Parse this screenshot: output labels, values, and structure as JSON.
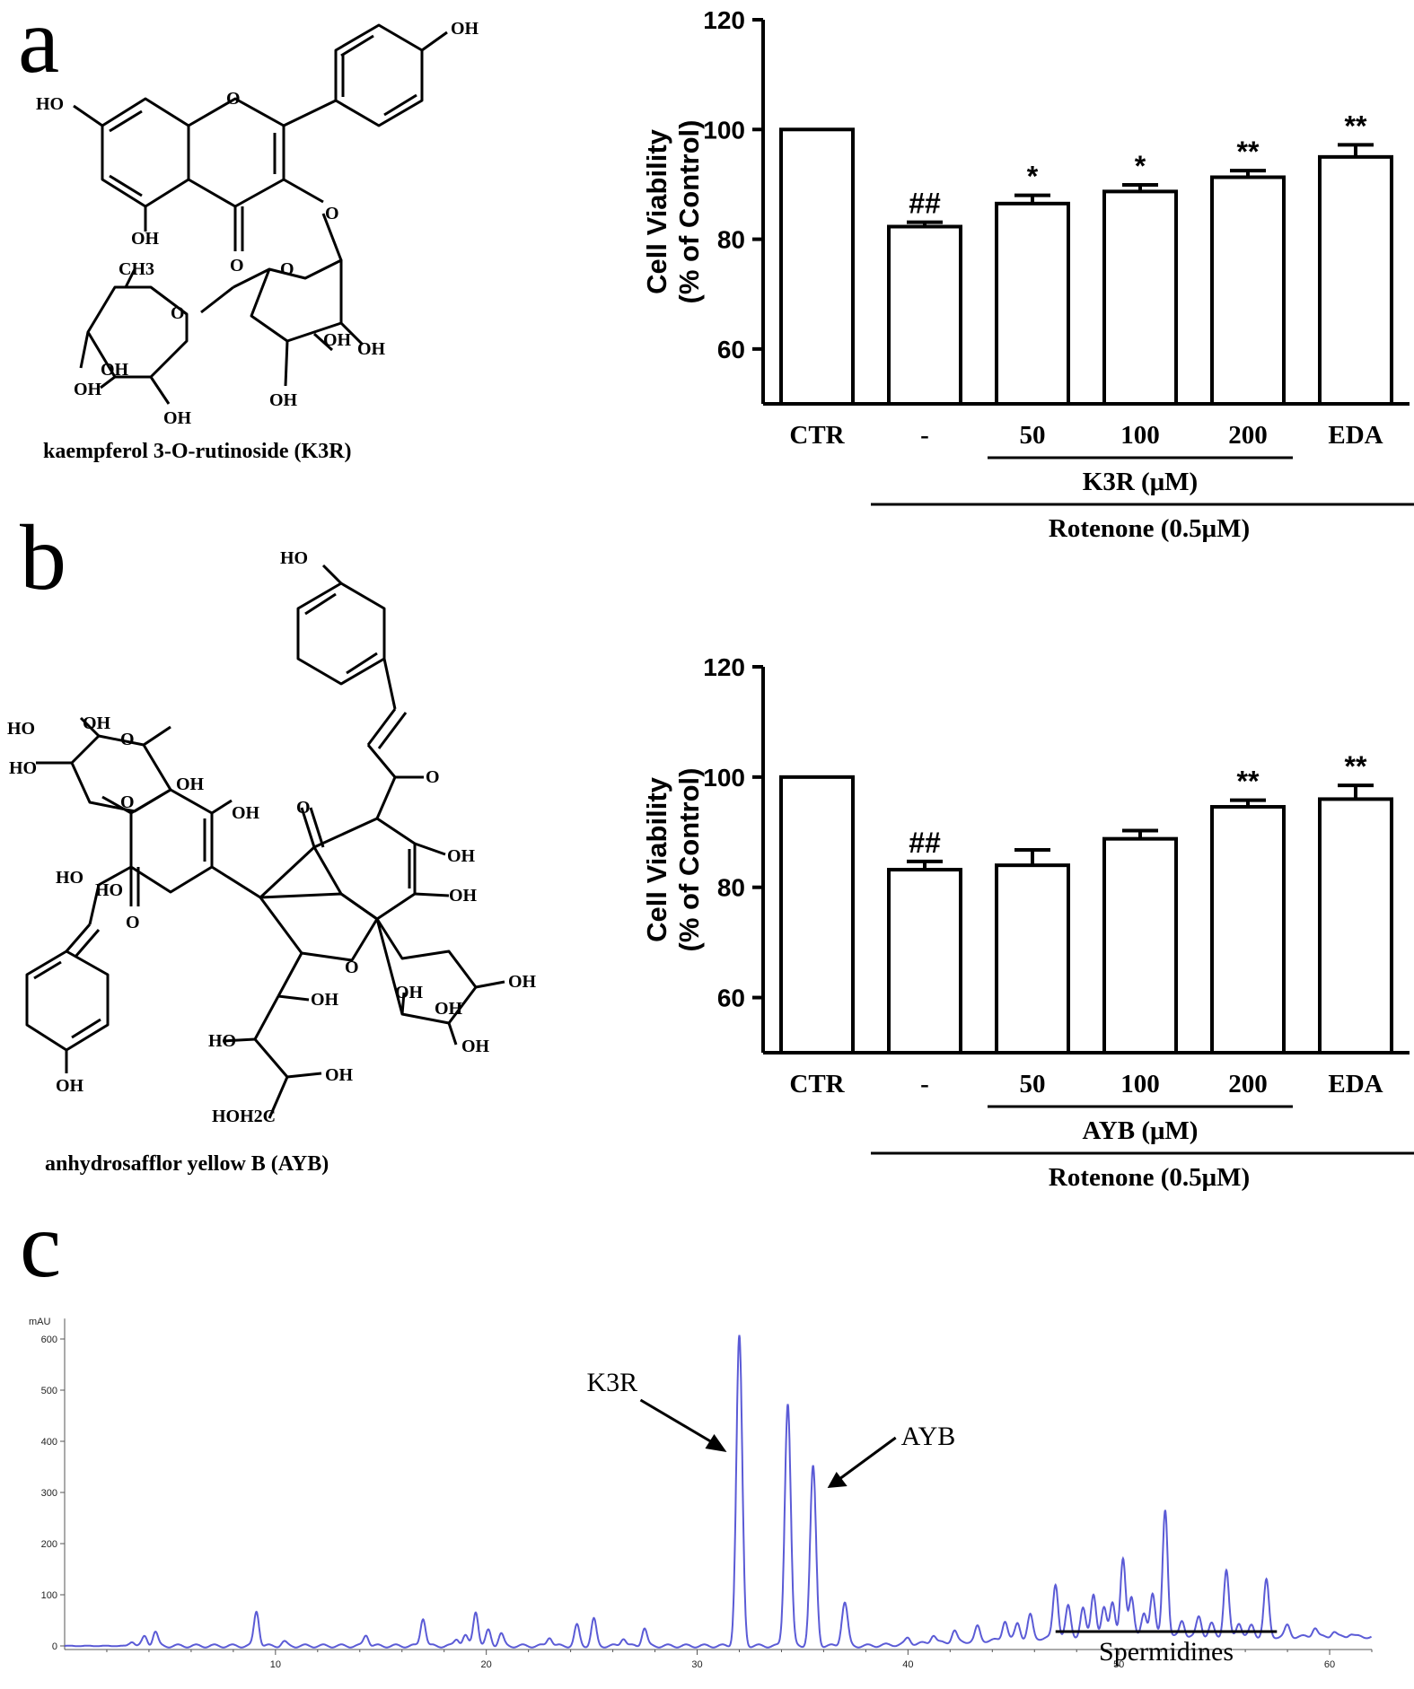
{
  "panels": {
    "a": {
      "letter": "a",
      "compound_name": "kaempferol 3-O-rutinoside (K3R)",
      "atoms": [
        "OH",
        "HO",
        "O",
        "OH",
        "O",
        "O",
        "CH3",
        "O",
        "O",
        "OH",
        "OH",
        "OH",
        "OH",
        "OH",
        "OH"
      ]
    },
    "b": {
      "letter": "b",
      "compound_name": "anhydrosafflor yellow B (AYB)",
      "atoms": [
        "HO",
        "HO",
        "OH",
        "O",
        "HO",
        "OH",
        "O",
        "OH",
        "O",
        "O",
        "OH",
        "HO",
        "O",
        "OH",
        "OH",
        "OH",
        "OH",
        "OH",
        "OH",
        "HO",
        "OH",
        "HOH2C",
        "O",
        "OH",
        "HO"
      ]
    },
    "c": {
      "letter": "c",
      "unit_label": "mAU"
    }
  },
  "chart_data": [
    {
      "type": "bar",
      "id": "panel-a-chart",
      "categories": [
        "CTR",
        "-",
        "50",
        "100",
        "200",
        "EDA"
      ],
      "values": [
        100,
        82.3,
        86.5,
        88.7,
        91.3,
        95.0
      ],
      "errors": [
        0,
        0.8,
        1.5,
        1.2,
        1.2,
        2.2
      ],
      "significance": [
        "",
        "##",
        "*",
        "*",
        "**",
        "**"
      ],
      "ylabel_line1": "Cell Viability",
      "ylabel_line2": "(% of Control)",
      "ylim": [
        50,
        120
      ],
      "yticks": [
        60,
        80,
        100,
        120
      ],
      "group_label_inner": "K3R (μM)",
      "group_label_outer": "Rotenone (0.5μM)"
    },
    {
      "type": "bar",
      "id": "panel-b-chart",
      "categories": [
        "CTR",
        "-",
        "50",
        "100",
        "200",
        "EDA"
      ],
      "values": [
        100,
        83.2,
        84.0,
        88.8,
        94.6,
        96.0
      ],
      "errors": [
        0,
        1.5,
        2.8,
        1.5,
        1.2,
        2.5
      ],
      "significance": [
        "",
        "##",
        "",
        "",
        "**",
        "**"
      ],
      "ylabel_line1": "Cell Viability",
      "ylabel_line2": "(% of Control)",
      "ylim": [
        50,
        120
      ],
      "yticks": [
        60,
        80,
        100,
        120
      ],
      "group_label_inner": "AYB (μM)",
      "group_label_outer": "Rotenone (0.5μM)"
    },
    {
      "type": "line",
      "id": "panel-c-chromatogram",
      "ylabel": "mAU",
      "xlim": [
        0,
        62
      ],
      "ylim": [
        -10,
        640
      ],
      "xticks": [
        10,
        20,
        30,
        40,
        50,
        60
      ],
      "yticks": [
        0,
        100,
        200,
        300,
        400,
        500,
        600
      ],
      "peaks": [
        {
          "x": 3.2,
          "y": 10
        },
        {
          "x": 3.8,
          "y": 18
        },
        {
          "x": 4.3,
          "y": 28
        },
        {
          "x": 9.1,
          "y": 68
        },
        {
          "x": 10.4,
          "y": 8
        },
        {
          "x": 14.3,
          "y": 22
        },
        {
          "x": 17.0,
          "y": 55
        },
        {
          "x": 18.6,
          "y": 14
        },
        {
          "x": 19.0,
          "y": 20
        },
        {
          "x": 19.5,
          "y": 68
        },
        {
          "x": 20.1,
          "y": 30
        },
        {
          "x": 20.7,
          "y": 24
        },
        {
          "x": 23.0,
          "y": 18
        },
        {
          "x": 24.3,
          "y": 40
        },
        {
          "x": 25.1,
          "y": 52
        },
        {
          "x": 26.5,
          "y": 16
        },
        {
          "x": 27.5,
          "y": 35
        },
        {
          "x": 32.0,
          "y": 605
        },
        {
          "x": 34.3,
          "y": 475
        },
        {
          "x": 35.5,
          "y": 350
        },
        {
          "x": 37.0,
          "y": 85
        },
        {
          "x": 40.0,
          "y": 12
        },
        {
          "x": 41.2,
          "y": 16
        },
        {
          "x": 42.2,
          "y": 22
        },
        {
          "x": 43.3,
          "y": 28
        },
        {
          "x": 44.6,
          "y": 38
        },
        {
          "x": 45.2,
          "y": 32
        },
        {
          "x": 45.8,
          "y": 46
        },
        {
          "x": 47.0,
          "y": 105
        },
        {
          "x": 47.6,
          "y": 60
        },
        {
          "x": 48.3,
          "y": 55
        },
        {
          "x": 48.8,
          "y": 85
        },
        {
          "x": 49.3,
          "y": 55
        },
        {
          "x": 49.7,
          "y": 70
        },
        {
          "x": 50.2,
          "y": 150
        },
        {
          "x": 50.6,
          "y": 80
        },
        {
          "x": 51.2,
          "y": 45
        },
        {
          "x": 51.6,
          "y": 85
        },
        {
          "x": 52.2,
          "y": 250
        },
        {
          "x": 53.0,
          "y": 32
        },
        {
          "x": 53.8,
          "y": 40
        },
        {
          "x": 54.4,
          "y": 25
        },
        {
          "x": 55.1,
          "y": 130
        },
        {
          "x": 55.7,
          "y": 28
        },
        {
          "x": 56.3,
          "y": 22
        },
        {
          "x": 57.0,
          "y": 110
        },
        {
          "x": 58.0,
          "y": 22
        },
        {
          "x": 59.3,
          "y": 18
        },
        {
          "x": 60.2,
          "y": 10
        },
        {
          "x": 61.0,
          "y": 6
        }
      ],
      "annotations": [
        {
          "text": "K3R",
          "x": 32.0
        },
        {
          "text": "AYB",
          "x": 35.5
        },
        {
          "text": "Spermidines",
          "range": [
            47.0,
            57.5
          ]
        }
      ],
      "line_color": "#5b5bd6"
    }
  ]
}
